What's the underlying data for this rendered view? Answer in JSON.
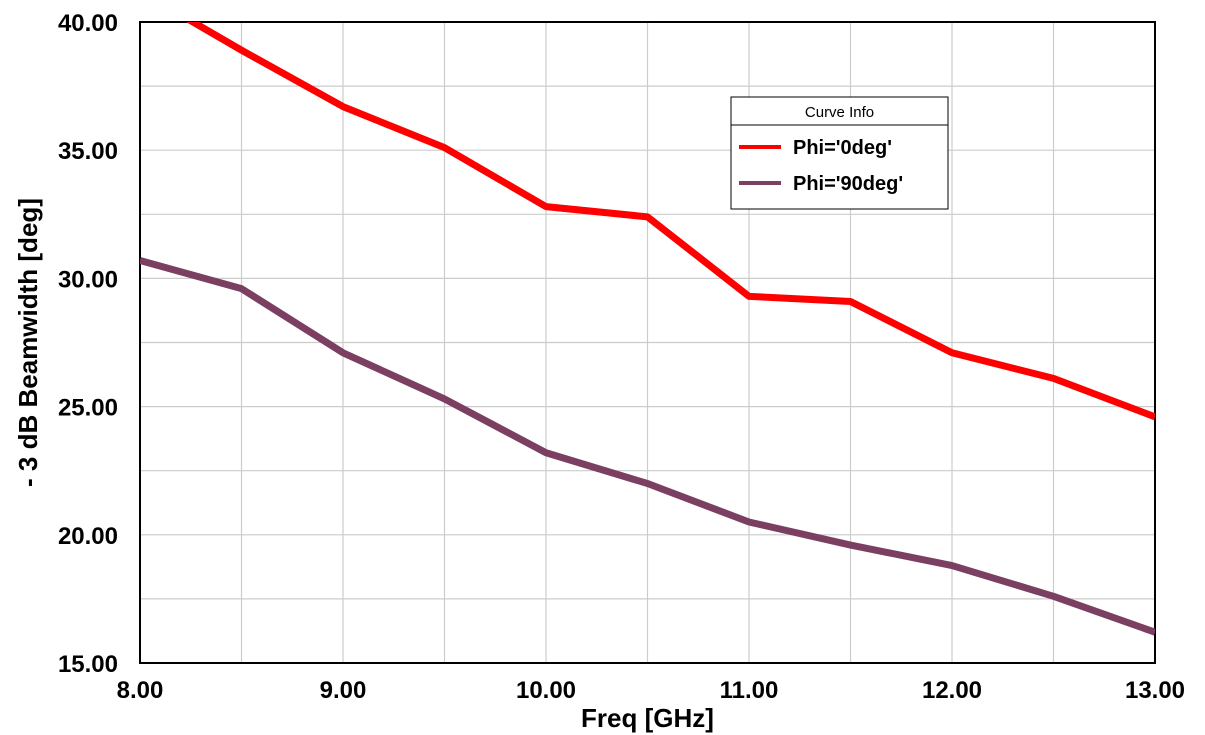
{
  "chart_data": {
    "type": "line",
    "xlabel": "Freq [GHz]",
    "ylabel": "- 3 dB Beamwidth [deg]",
    "xlim": [
      8,
      13
    ],
    "ylim": [
      15,
      40
    ],
    "x_ticks": [
      "8.00",
      "9.00",
      "10.00",
      "11.00",
      "12.00",
      "13.00"
    ],
    "y_ticks": [
      "15.00",
      "20.00",
      "25.00",
      "30.00",
      "35.00",
      "40.00"
    ],
    "grid": true,
    "legend": {
      "title": "Curve Info",
      "position": "top-right"
    },
    "x": [
      8.0,
      8.5,
      9.0,
      9.5,
      10.0,
      10.5,
      11.0,
      11.5,
      12.0,
      12.5,
      13.0
    ],
    "series": [
      {
        "name": "Phi='0deg'",
        "color": "#ff0000",
        "values": [
          41.2,
          38.9,
          36.7,
          35.1,
          32.8,
          32.4,
          29.3,
          29.1,
          27.1,
          26.1,
          24.6
        ]
      },
      {
        "name": "Phi='90deg'",
        "color": "#7b3f61",
        "values": [
          30.7,
          29.6,
          27.1,
          25.3,
          23.2,
          22.0,
          20.5,
          19.6,
          18.8,
          17.6,
          16.2
        ]
      }
    ]
  }
}
